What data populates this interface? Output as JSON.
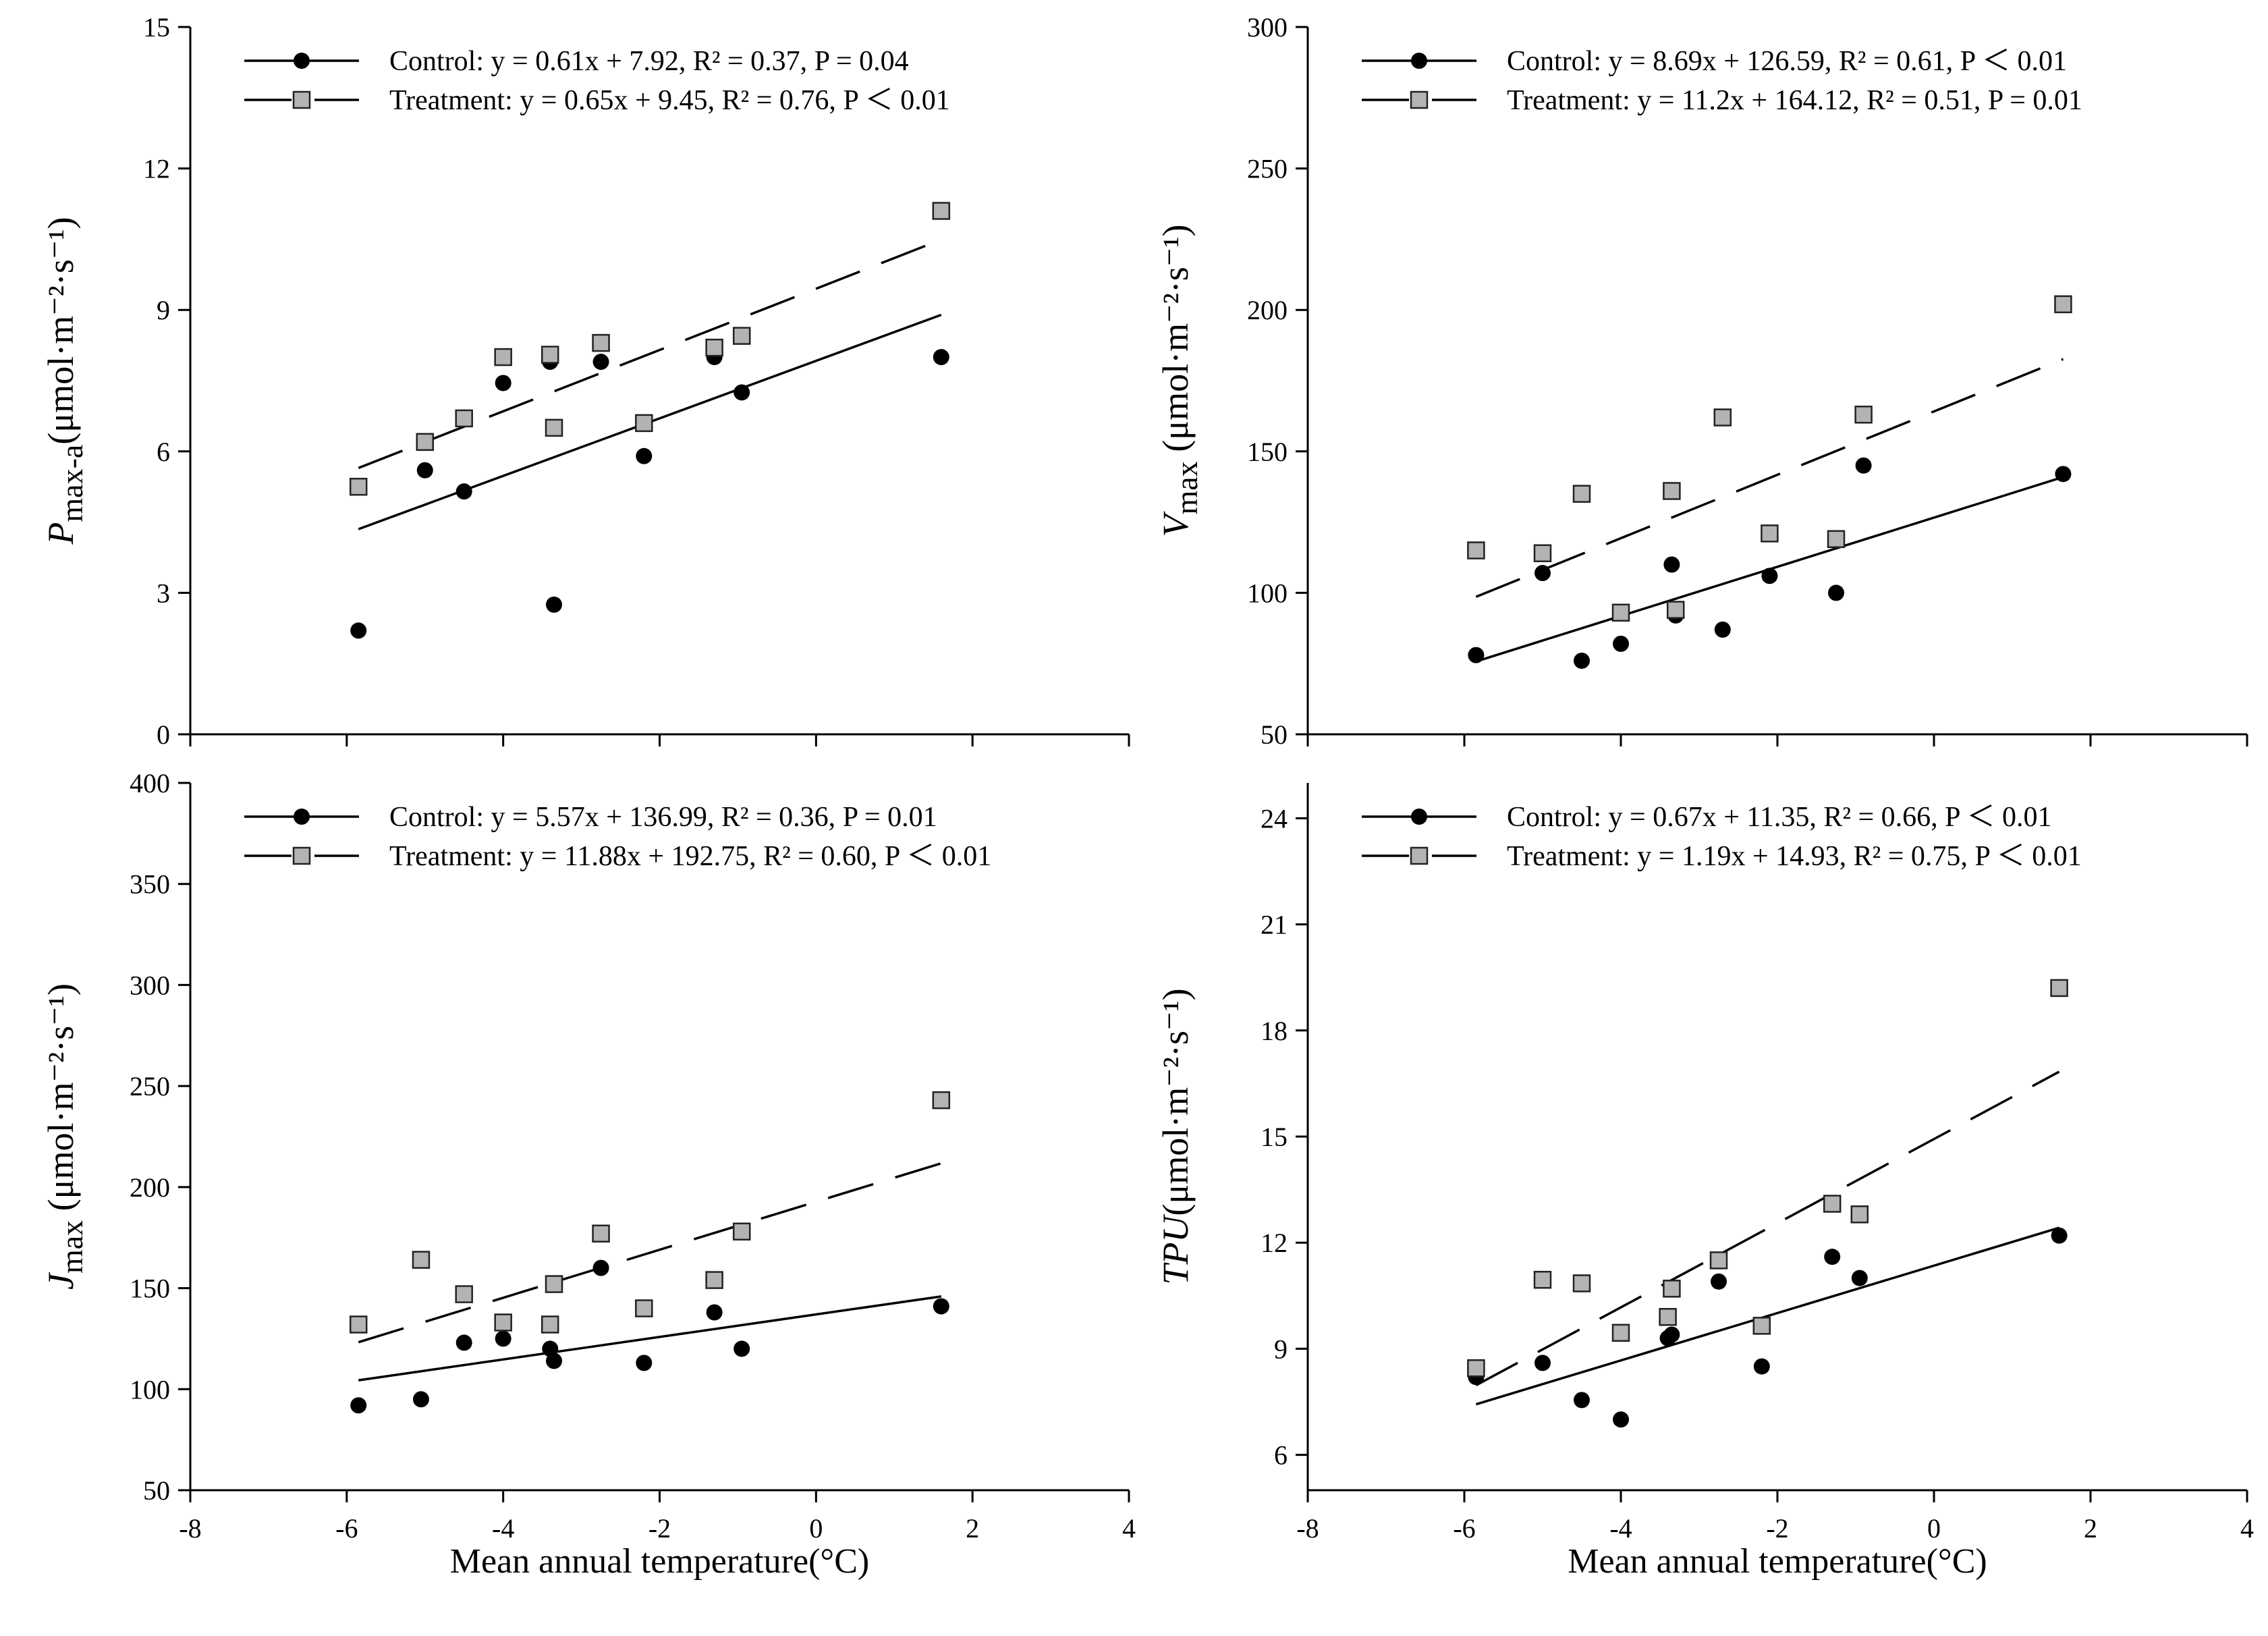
{
  "xaxis_label": "Mean annual temperature(°C)",
  "chart_data": [
    {
      "type": "scatter",
      "id": "pmax",
      "ylabel_main": "P",
      "ylabel_sub": "max-a",
      "ylabel_unit": "(μmol·m⁻²·s⁻¹)",
      "xlim": [
        -8,
        4
      ],
      "ylim": [
        0,
        15
      ],
      "xticks": [
        "-8",
        "-6",
        "-4",
        "-2",
        "0",
        "2",
        "4"
      ],
      "xtick_values": [
        -8,
        -6,
        -4,
        -2,
        0,
        2,
        4
      ],
      "yticks": [
        "0",
        "3",
        "6",
        "9",
        "12",
        "15"
      ],
      "ytick_values": [
        0,
        3,
        6,
        9,
        12,
        15
      ],
      "show_xticklabels": false,
      "legend_position": "top-left",
      "series": [
        {
          "name": "Control",
          "equation": "y = 0.61x + 7.92, ",
          "r2": "R² = 0.37, ",
          "p": "P = 0.04",
          "marker": "circle",
          "line_style": "solid",
          "slope": 0.61,
          "intercept": 7.92,
          "fit_range": [
            -5.85,
            1.6
          ],
          "x": [
            -5.85,
            -5.0,
            -4.5,
            -4.0,
            -3.4,
            -3.35,
            -2.75,
            -2.2,
            -1.3,
            -0.95,
            1.6
          ],
          "y": [
            2.2,
            5.6,
            5.15,
            7.45,
            7.9,
            2.75,
            7.9,
            5.9,
            8.0,
            7.25,
            8.0
          ]
        },
        {
          "name": "Treatment",
          "equation": "y = 0.65x + 9.45, ",
          "r2": "R² = 0.76, ",
          "p": "P ＜ 0.01",
          "marker": "square",
          "line_style": "long-dash",
          "slope": 0.65,
          "intercept": 9.45,
          "fit_range": [
            -5.85,
            1.6
          ],
          "x": [
            -5.85,
            -5.0,
            -4.5,
            -4.0,
            -3.4,
            -3.35,
            -2.75,
            -2.2,
            -1.3,
            -0.95,
            1.6
          ],
          "y": [
            5.25,
            6.2,
            6.7,
            8.0,
            8.05,
            6.5,
            8.3,
            6.6,
            8.2,
            8.45,
            11.1
          ]
        }
      ]
    },
    {
      "type": "scatter",
      "id": "vmax",
      "ylabel_main": "V",
      "ylabel_sub": "max",
      "ylabel_unit": " (μmol·m⁻²·s⁻¹)",
      "xlim": [
        -8,
        4
      ],
      "ylim": [
        50,
        300
      ],
      "xticks": [
        "-8",
        "-6",
        "-4",
        "-2",
        "0",
        "2",
        "4"
      ],
      "xtick_values": [
        -8,
        -6,
        -4,
        -2,
        0,
        2,
        4
      ],
      "yticks": [
        "50",
        "100",
        "150",
        "200",
        "250",
        "300"
      ],
      "ytick_values": [
        50,
        100,
        150,
        200,
        250,
        300
      ],
      "show_xticklabels": false,
      "legend_position": "top-left",
      "series": [
        {
          "name": "Control",
          "equation": "y = 8.69x + 126.59, ",
          "r2": "R² = 0.61, ",
          "p": "P ＜ 0.01",
          "marker": "circle",
          "line_style": "solid",
          "slope": 8.69,
          "intercept": 126.59,
          "fit_range": [
            -5.85,
            1.65
          ],
          "x": [
            -5.85,
            -5.0,
            -4.5,
            -4.0,
            -3.35,
            -3.3,
            -2.7,
            -2.1,
            -1.25,
            -0.9,
            1.65
          ],
          "y": [
            78,
            107,
            76,
            82,
            110,
            92,
            87,
            106,
            100,
            145,
            142
          ]
        },
        {
          "name": "Treatment",
          "equation": "y = 11.2x + 164.12, ",
          "r2": "R² = 0.51, ",
          "p": "P = 0.01",
          "marker": "square",
          "line_style": "long-dash",
          "slope": 11.2,
          "intercept": 164.12,
          "fit_range": [
            -5.85,
            1.65
          ],
          "x": [
            -5.85,
            -5.0,
            -4.5,
            -4.0,
            -3.35,
            -3.3,
            -2.7,
            -2.1,
            -1.25,
            -0.9,
            1.65
          ],
          "y": [
            115,
            114,
            135,
            93,
            136,
            94,
            162,
            121,
            119,
            163,
            202
          ]
        }
      ]
    },
    {
      "type": "scatter",
      "id": "jmax",
      "ylabel_main": "J",
      "ylabel_sub": "max",
      "ylabel_unit": " (μmol·m⁻²·s⁻¹)",
      "xlim": [
        -8,
        4
      ],
      "ylim": [
        50,
        400
      ],
      "xticks": [
        "-8",
        "-6",
        "-4",
        "-2",
        "0",
        "2",
        "4"
      ],
      "xtick_values": [
        -8,
        -6,
        -4,
        -2,
        0,
        2,
        4
      ],
      "yticks": [
        "50",
        "100",
        "150",
        "200",
        "250",
        "300",
        "350",
        "400"
      ],
      "ytick_values": [
        50,
        100,
        150,
        200,
        250,
        300,
        350,
        400
      ],
      "show_xticklabels": true,
      "legend_position": "top-left",
      "series": [
        {
          "name": "Control",
          "equation": "y = 5.57x + 136.99, ",
          "r2": "R² = 0.36, ",
          "p": "P = 0.01",
          "marker": "circle",
          "line_style": "solid",
          "slope": 5.57,
          "intercept": 136.99,
          "fit_range": [
            -5.85,
            1.6
          ],
          "x": [
            -5.85,
            -5.05,
            -4.5,
            -4.0,
            -3.4,
            -3.35,
            -2.75,
            -2.2,
            -1.3,
            -0.95,
            1.6
          ],
          "y": [
            92,
            95,
            123,
            125,
            120,
            114,
            160,
            113,
            138,
            120,
            141
          ]
        },
        {
          "name": "Treatment",
          "equation": "y = 11.88x + 192.75, ",
          "r2": "R² = 0.60, ",
          "p": "P ＜ 0.01",
          "marker": "square",
          "line_style": "long-dash",
          "slope": 11.88,
          "intercept": 192.75,
          "fit_range": [
            -5.85,
            1.6
          ],
          "x": [
            -5.85,
            -5.05,
            -4.5,
            -4.0,
            -3.4,
            -3.35,
            -2.75,
            -2.2,
            -1.3,
            -0.95,
            1.6
          ],
          "y": [
            132,
            164,
            147,
            133,
            132,
            152,
            177,
            140,
            154,
            178,
            243
          ]
        }
      ]
    },
    {
      "type": "scatter",
      "id": "tpu",
      "ylabel_main": "TPU",
      "ylabel_sub": "",
      "ylabel_unit": "(μmol·m⁻²·s⁻¹)",
      "xlim": [
        -8,
        4
      ],
      "ylim": [
        5,
        25
      ],
      "xticks": [
        "-8",
        "-6",
        "-4",
        "-2",
        "0",
        "2",
        "4"
      ],
      "xtick_values": [
        -8,
        -6,
        -4,
        -2,
        0,
        2,
        4
      ],
      "yticks": [
        "6",
        "9",
        "12",
        "15",
        "18",
        "21",
        "24"
      ],
      "ytick_values": [
        6,
        9,
        12,
        15,
        18,
        21,
        24
      ],
      "show_xticklabels": true,
      "legend_position": "top-left",
      "series": [
        {
          "name": "Control",
          "equation": "y = 0.67x + 11.35, ",
          "r2": "R² = 0.66, ",
          "p": "P ＜ 0.01",
          "marker": "plus-circle",
          "line_style": "solid",
          "slope": 0.67,
          "intercept": 11.35,
          "fit_range": [
            -5.85,
            1.6
          ],
          "x": [
            -5.85,
            -5.0,
            -4.5,
            -4.0,
            -3.4,
            -3.35,
            -2.75,
            -2.2,
            -1.3,
            -0.95,
            1.6
          ],
          "y": [
            8.2,
            8.6,
            7.55,
            7.0,
            9.3,
            9.4,
            10.9,
            8.5,
            11.6,
            11.0,
            12.2
          ]
        },
        {
          "name": "Treatment",
          "equation": "y = 1.19x + 14.93, ",
          "r2": "R² = 0.75, ",
          "p": "P ＜ 0.01",
          "marker": "square",
          "line_style": "long-dash",
          "slope": 1.19,
          "intercept": 14.93,
          "fit_range": [
            -5.85,
            1.6
          ],
          "x": [
            -5.85,
            -5.0,
            -4.5,
            -4.0,
            -3.4,
            -3.35,
            -2.75,
            -2.2,
            -1.3,
            -0.95,
            1.6
          ],
          "y": [
            8.45,
            10.95,
            10.85,
            9.45,
            9.9,
            10.7,
            11.5,
            9.65,
            13.1,
            12.8,
            19.2
          ]
        }
      ]
    }
  ]
}
